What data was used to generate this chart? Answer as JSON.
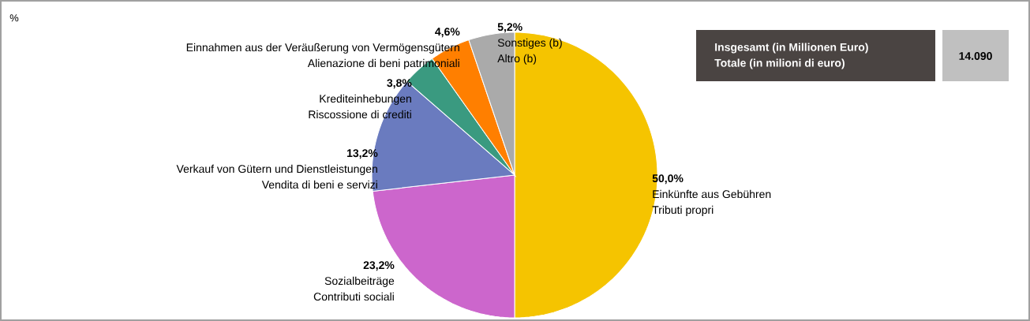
{
  "chart_data": {
    "type": "pie",
    "categories": [
      "Einkünfte aus Gebühren",
      "Sozialbeiträge",
      "Verkauf von Gütern und Dienstleistungen",
      "Krediteinhebungen",
      "Einnahmen aus der Veräußerung von Vermögensgütern",
      "Sonstiges (b)"
    ],
    "values": [
      50.0,
      23.2,
      13.2,
      3.8,
      4.6,
      5.2
    ],
    "value_labels": [
      "50,0%",
      "23,2%",
      "13,2%",
      "3,8%",
      "4,6%",
      "5,2%"
    ],
    "colors": [
      "#f5c400",
      "#cc66cc",
      "#6a7bbf",
      "#3a9a80",
      "#ff7f00",
      "#aaaaaa"
    ],
    "annotations": [
      "%",
      "Insgesamt (in Millionen Euro)",
      "Totale (in milioni di euro)",
      "14.090",
      {
        "text": "Tributi propri",
        "x": "Einkünfte aus Gebühren"
      },
      {
        "text": "Contributi sociali",
        "x": "Sozialbeiträge"
      },
      {
        "text": "Vendita di beni e servizi",
        "x": "Verkauf von Gütern und Dienstleistungen"
      },
      {
        "text": "Riscossione di crediti",
        "x": "Krediteinhebungen"
      },
      {
        "text": "Alienazione di beni patrimoniali",
        "x": "Einnahmen aus der Veräußerung von Vermögensgütern"
      },
      {
        "text": "Altro (b)",
        "x": "Sonstiges (b)"
      }
    ]
  }
}
